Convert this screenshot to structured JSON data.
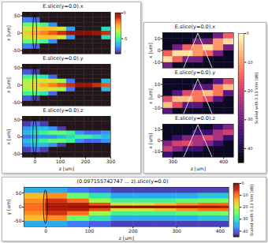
{
  "chart_data": [
    {
      "type": "heatmap",
      "title": "E.slice(y=0.0).x",
      "y_label": "x [um]",
      "color": "turbo",
      "tick_labels": "y",
      "xlim": [
        -50,
        300
      ],
      "ylim": [
        -60,
        60
      ],
      "yticks": [
        -50,
        0,
        50
      ],
      "x_bins": [
        -50,
        -15,
        20,
        55,
        90,
        125,
        160,
        195,
        230,
        265,
        300
      ],
      "y_bins": [
        -60,
        -45,
        -30,
        -18,
        -6,
        6,
        18,
        30,
        45,
        60
      ],
      "cells": [
        [
          -8,
          -8,
          -8,
          -8,
          -8,
          -8,
          -8,
          -8,
          -8,
          -8
        ],
        [
          -6.7,
          -7,
          -8,
          -8,
          -8,
          -8,
          -8,
          -8,
          -8,
          -8
        ],
        [
          -4.5,
          -4.3,
          -4.9,
          -6.6,
          -8,
          -8,
          -8,
          -8,
          -8,
          -8
        ],
        [
          -3.4,
          -3,
          -2.7,
          -2.8,
          -3.4,
          -6.4,
          -8,
          -8,
          -8,
          -5.5
        ],
        [
          -3,
          -2.5,
          -2,
          -1.5,
          -1,
          -0.5,
          0,
          0,
          -0.5,
          -1
        ],
        [
          -3.4,
          -3,
          -2.7,
          -2.8,
          -3.4,
          -6.4,
          -8,
          -8,
          -8,
          -5.5
        ],
        [
          -4.5,
          -4.3,
          -4.9,
          -6.6,
          -8,
          -8,
          -8,
          -8,
          -8,
          -8
        ],
        [
          -6.7,
          -7,
          -8,
          -8,
          -8,
          -8,
          -8,
          -8,
          -8,
          -8
        ],
        [
          -8,
          -8,
          -8,
          -8,
          -8,
          -8,
          -8,
          -8,
          -8,
          -8
        ]
      ],
      "colorbar": {
        "range": [
          -8,
          0
        ],
        "ticks": [
          0,
          -5
        ]
      }
    },
    {
      "type": "heatmap",
      "title": "E.slice(y=0.0).y",
      "y_label": "x [um]",
      "color": "turbo",
      "tick_labels": "y",
      "xlim": [
        -50,
        300
      ],
      "ylim": [
        -60,
        60
      ],
      "yticks": [
        -50,
        0,
        50
      ],
      "x_bins": [
        -50,
        -15,
        20,
        55,
        90,
        125,
        160,
        195,
        230,
        265,
        300
      ],
      "y_bins": [
        -60,
        -45,
        -30,
        -18,
        -6,
        6,
        18,
        30,
        45,
        60
      ],
      "cells": [
        [
          -8,
          -8,
          -8,
          -8,
          -8,
          -8,
          -8,
          -8,
          -8,
          -8
        ],
        [
          -7.2,
          -7.5,
          -8,
          -8,
          -8,
          -8,
          -8,
          -8,
          -8,
          -8
        ],
        [
          -5,
          -4.8,
          -5.4,
          -7.1,
          -8,
          -8,
          -8,
          -8,
          -8,
          -8
        ],
        [
          -3.9,
          -3.5,
          -3.2,
          -3.3,
          -3.9,
          -6.9,
          -8,
          -8,
          -8,
          -6
        ],
        [
          -3.5,
          -3,
          -2.5,
          -2,
          -1.5,
          -1,
          -0.5,
          -0.5,
          -1,
          -1.5
        ],
        [
          -3.9,
          -3.5,
          -3.2,
          -3.3,
          -3.9,
          -6.9,
          -8,
          -8,
          -8,
          -6
        ],
        [
          -5,
          -4.8,
          -5.4,
          -7.1,
          -8,
          -8,
          -8,
          -8,
          -8,
          -8
        ],
        [
          -7.2,
          -7.5,
          -8,
          -8,
          -8,
          -8,
          -8,
          -8,
          -8,
          -8
        ],
        [
          -8,
          -8,
          -8,
          -8,
          -8,
          -8,
          -8,
          -8,
          -8,
          -8
        ]
      ]
    },
    {
      "type": "heatmap",
      "title": "E.slice(y=0.0).z",
      "x_label": "z [um]",
      "y_label": "x [um]",
      "color": "turbo",
      "xlim": [
        -50,
        300
      ],
      "ylim": [
        -60,
        60
      ],
      "xticks": [
        0,
        100,
        200,
        300
      ],
      "yticks": [
        -50,
        0,
        50
      ],
      "x_bins": [
        -50,
        -15,
        20,
        55,
        90,
        125,
        160,
        195,
        230,
        265,
        300
      ],
      "y_bins": [
        -60,
        -45,
        -30,
        -18,
        -6,
        6,
        18,
        30,
        45,
        60
      ],
      "cells": [
        [
          -8,
          -8,
          -8,
          -8,
          -8,
          -8,
          -8,
          -8,
          -8,
          -8
        ],
        [
          -7.5,
          -7,
          -7.5,
          -8,
          -8,
          -8,
          -8,
          -8,
          -8,
          -8
        ],
        [
          -6.5,
          -6,
          -6,
          -6.5,
          -7.5,
          -8,
          -8,
          -8,
          -8,
          -8
        ],
        [
          -6,
          -5.5,
          -5,
          -4.5,
          -4.5,
          -5,
          -6.5,
          -7,
          -7,
          -6.5
        ],
        [
          -7,
          -6.5,
          -6.5,
          -6.5,
          -6,
          -5.5,
          -5,
          -5,
          -5.5,
          -6
        ],
        [
          -6,
          -5.5,
          -5,
          -4.5,
          -4.5,
          -5,
          -6.5,
          -7,
          -7,
          -6.5
        ],
        [
          -6.5,
          -6,
          -6,
          -6.5,
          -7.5,
          -8,
          -8,
          -8,
          -8,
          -8
        ],
        [
          -7.5,
          -7,
          -7.5,
          -8,
          -8,
          -8,
          -8,
          -8,
          -8,
          -8
        ],
        [
          -8,
          -8,
          -8,
          -8,
          -8,
          -8,
          -8,
          -8,
          -8,
          -8
        ]
      ]
    },
    {
      "type": "heatmap",
      "title": "E.slice(y=0.0).x",
      "y_label": "x [um]",
      "color": "magma",
      "tick_labels": "y",
      "xlim": [
        280,
        420
      ],
      "ylim": [
        -15,
        15
      ],
      "yticks": [
        -10,
        0,
        10
      ],
      "x_bins": [
        280,
        300,
        320,
        340,
        360,
        380,
        400,
        420
      ],
      "y_bins": [
        -15,
        -10,
        -5,
        0,
        5,
        10,
        15
      ],
      "cells": [
        [
          -30,
          -42,
          -42,
          -42,
          -42,
          -42,
          -42
        ],
        [
          -3,
          -15,
          -30,
          -30,
          -42,
          -42,
          -42
        ],
        [
          -15,
          -3,
          -3,
          -10,
          -15,
          -30,
          -42
        ],
        [
          -42,
          -30,
          -15,
          -10,
          -3,
          -10,
          -30
        ],
        [
          -42,
          -42,
          -42,
          -30,
          -30,
          -10,
          -3
        ],
        [
          -42,
          -42,
          -42,
          -42,
          -42,
          -30,
          -15
        ]
      ]
    },
    {
      "type": "heatmap",
      "title": "E.slice(y=0.0).y",
      "y_label": "x [um]",
      "color": "magma",
      "tick_labels": "y",
      "xlim": [
        280,
        420
      ],
      "ylim": [
        -15,
        15
      ],
      "yticks": [
        -10,
        0,
        10
      ],
      "x_bins": [
        280,
        300,
        320,
        340,
        360,
        380,
        400,
        420
      ],
      "y_bins": [
        -15,
        -10,
        -5,
        0,
        5,
        10,
        15
      ],
      "cells": [
        [
          -33,
          -42,
          -42,
          -42,
          -42,
          -42,
          -42
        ],
        [
          -6,
          -18,
          -33,
          -33,
          -42,
          -42,
          -42
        ],
        [
          -18,
          -6,
          -6,
          -13,
          -18,
          -33,
          -42
        ],
        [
          -42,
          -33,
          -18,
          -13,
          -6,
          -13,
          -33
        ],
        [
          -42,
          -42,
          -42,
          -33,
          -33,
          -13,
          -6
        ],
        [
          -42,
          -42,
          -42,
          -42,
          -42,
          -33,
          -18
        ]
      ],
      "colorbar": {
        "range": [
          -45,
          0
        ],
        "ticks": [
          0,
          -10,
          -20,
          -30,
          -40
        ],
        "label": "Scaled with 0.13 V/m [dB]"
      }
    },
    {
      "type": "heatmap",
      "title": "E.slice(y=0.0).z",
      "x_label": "z [um]",
      "y_label": "x [um]",
      "color": "magma",
      "xlim": [
        280,
        420
      ],
      "ylim": [
        -15,
        15
      ],
      "xticks": [
        300,
        400
      ],
      "yticks": [
        -10,
        0,
        10
      ],
      "x_bins": [
        280,
        300,
        320,
        340,
        360,
        380,
        400,
        420
      ],
      "y_bins": [
        -15,
        -10,
        -5,
        0,
        5,
        10,
        15
      ],
      "cells": [
        [
          -36,
          -42,
          -42,
          -42,
          -42,
          -42,
          -42
        ],
        [
          -20,
          -28,
          -36,
          -36,
          -42,
          -42,
          -42
        ],
        [
          -28,
          -20,
          -18,
          -24,
          -28,
          -36,
          -42
        ],
        [
          -42,
          -36,
          -28,
          -24,
          -18,
          -24,
          -36
        ],
        [
          -42,
          -42,
          -42,
          -36,
          -36,
          -24,
          -20
        ],
        [
          -42,
          -42,
          -42,
          -42,
          -42,
          -36,
          -28
        ]
      ]
    },
    {
      "type": "heatmap",
      "title": "(0.097155742747 ... z).slice(y=0.0)",
      "x_label": "z [um]",
      "y_label": "y [um]",
      "color": "turbo",
      "xlim": [
        -50,
        420
      ],
      "ylim": [
        -70,
        70
      ],
      "xticks": [
        0,
        100,
        200,
        300,
        400
      ],
      "yticks": [
        -50,
        0,
        50
      ],
      "x_bins": [
        -50,
        0,
        50,
        100,
        150,
        200,
        250,
        300,
        350,
        400,
        420
      ],
      "y_bins": [
        -70,
        -50,
        -30,
        -15,
        -5,
        5,
        15,
        30,
        50,
        70
      ],
      "cells": [
        [
          -35,
          -35,
          -38,
          -40,
          -42,
          -42,
          -42,
          -42,
          -42,
          -42
        ],
        [
          -15,
          -12,
          -25,
          -30,
          -35,
          -35,
          -35,
          -35,
          -33,
          -33
        ],
        [
          -12,
          -6,
          -10,
          -22,
          -28,
          -28,
          -28,
          -26,
          -25,
          -24
        ],
        [
          -10,
          -4,
          -4,
          -8,
          -18,
          -18,
          -15,
          -12,
          -10,
          -10
        ],
        [
          -10,
          -3,
          -2,
          -1,
          0,
          0,
          -1,
          -2,
          -3,
          -4
        ],
        [
          -10,
          -4,
          -4,
          -8,
          -18,
          -18,
          -15,
          -12,
          -10,
          -10
        ],
        [
          -12,
          -6,
          -10,
          -22,
          -28,
          -28,
          -28,
          -26,
          -25,
          -24
        ],
        [
          -15,
          -12,
          -25,
          -30,
          -35,
          -35,
          -35,
          -35,
          -33,
          -33
        ],
        [
          -35,
          -35,
          -38,
          -40,
          -42,
          -42,
          -42,
          -42,
          -42,
          -42
        ]
      ],
      "colorbar": {
        "range": [
          -45,
          0
        ],
        "ticks": [
          0,
          -10,
          -20,
          -30,
          -40
        ],
        "label": "Scaled with 0.13 V/m [dB]"
      }
    }
  ]
}
